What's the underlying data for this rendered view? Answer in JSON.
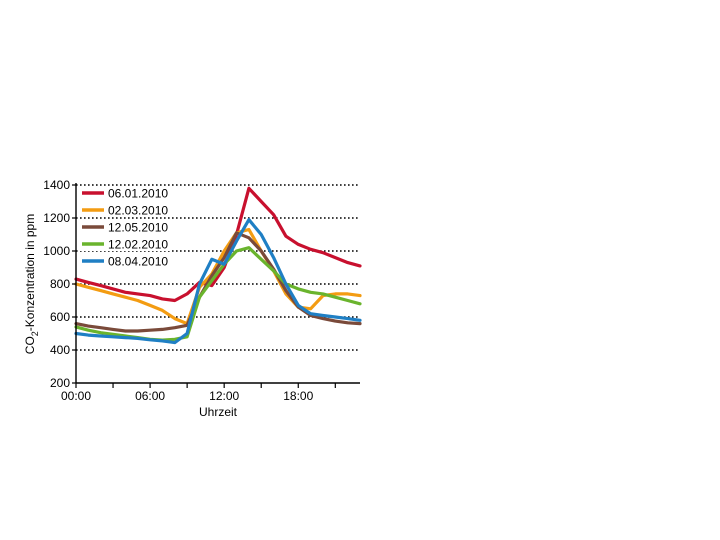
{
  "chart_data": {
    "type": "line",
    "title": "",
    "xlabel": "Uhrzeit",
    "ylabel_main": "CO",
    "ylabel_sub": "2",
    "ylabel_rest": "-Konzentration in ppm",
    "xlim": [
      0,
      23
    ],
    "ylim": [
      200,
      1400
    ],
    "yticks": [
      200,
      400,
      600,
      800,
      1000,
      1200,
      1400
    ],
    "ytick_labels": [
      "200",
      "400",
      "600",
      "800",
      "1000",
      "1200",
      "1400"
    ],
    "xticks": [
      0,
      6,
      12,
      18
    ],
    "xtick_labels": [
      "00:00",
      "06:00",
      "12:00",
      "18:00"
    ],
    "grid": "horizontal dotted",
    "legend_position": "top-left",
    "series": [
      {
        "name": "06.01.2010",
        "color": "#c8102e",
        "x": [
          0,
          1,
          2,
          3,
          4,
          5,
          6,
          7,
          8,
          9,
          10,
          11,
          12,
          13,
          14,
          15,
          16,
          17,
          18,
          19,
          20,
          21,
          22,
          23
        ],
        "y": [
          830,
          810,
          790,
          770,
          750,
          740,
          730,
          710,
          700,
          740,
          810,
          790,
          900,
          1100,
          1380,
          1300,
          1220,
          1090,
          1040,
          1010,
          990,
          960,
          930,
          910
        ]
      },
      {
        "name": "02.03.2010",
        "color": "#f39c12",
        "x": [
          0,
          1,
          2,
          3,
          4,
          5,
          6,
          7,
          8,
          9,
          10,
          11,
          12,
          13,
          14,
          15,
          16,
          17,
          18,
          19,
          20,
          21,
          22,
          23
        ],
        "y": [
          800,
          780,
          760,
          740,
          720,
          700,
          670,
          640,
          590,
          560,
          780,
          860,
          1000,
          1110,
          1130,
          1000,
          880,
          740,
          660,
          650,
          730,
          740,
          740,
          730
        ]
      },
      {
        "name": "12.05.2010",
        "color": "#7a4a3a",
        "x": [
          0,
          1,
          2,
          3,
          4,
          5,
          6,
          7,
          8,
          9,
          10,
          11,
          12,
          13,
          14,
          15,
          16,
          17,
          18,
          19,
          20,
          21,
          22,
          23
        ],
        "y": [
          560,
          545,
          535,
          525,
          515,
          515,
          520,
          525,
          535,
          550,
          720,
          850,
          960,
          1110,
          1080,
          1000,
          890,
          760,
          660,
          610,
          590,
          575,
          565,
          560
        ]
      },
      {
        "name": "12.02.2010",
        "color": "#6ab42d",
        "x": [
          0,
          1,
          2,
          3,
          4,
          5,
          6,
          7,
          8,
          9,
          10,
          11,
          12,
          13,
          14,
          15,
          16,
          17,
          18,
          19,
          20,
          21,
          22,
          23
        ],
        "y": [
          540,
          520,
          505,
          495,
          485,
          475,
          465,
          460,
          465,
          480,
          720,
          820,
          920,
          1000,
          1020,
          950,
          880,
          800,
          770,
          750,
          740,
          720,
          700,
          680
        ]
      },
      {
        "name": "08.04.2010",
        "color": "#1f7fc4",
        "x": [
          0,
          1,
          2,
          3,
          4,
          5,
          6,
          7,
          8,
          9,
          10,
          11,
          12,
          13,
          14,
          15,
          16,
          17,
          18,
          19,
          20,
          21,
          22,
          23
        ],
        "y": [
          500,
          490,
          485,
          480,
          475,
          470,
          462,
          455,
          445,
          500,
          800,
          950,
          920,
          1060,
          1190,
          1100,
          960,
          800,
          670,
          620,
          610,
          600,
          590,
          580
        ]
      }
    ]
  }
}
